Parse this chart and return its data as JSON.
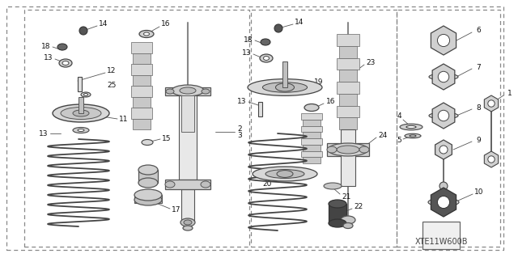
{
  "bg_color": "#ffffff",
  "line_color": "#333333",
  "part_code": "XTE11W600B",
  "figsize": [
    6.4,
    3.19
  ],
  "dpi": 100
}
